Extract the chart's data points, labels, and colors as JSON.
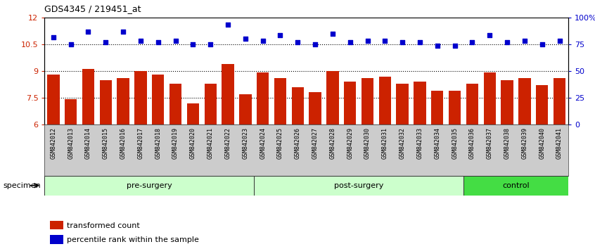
{
  "title": "GDS4345 / 219451_at",
  "categories": [
    "GSM842012",
    "GSM842013",
    "GSM842014",
    "GSM842015",
    "GSM842016",
    "GSM842017",
    "GSM842018",
    "GSM842019",
    "GSM842020",
    "GSM842021",
    "GSM842022",
    "GSM842023",
    "GSM842024",
    "GSM842025",
    "GSM842026",
    "GSM842027",
    "GSM842028",
    "GSM842029",
    "GSM842030",
    "GSM842031",
    "GSM842032",
    "GSM842033",
    "GSM842034",
    "GSM842035",
    "GSM842036",
    "GSM842037",
    "GSM842038",
    "GSM842039",
    "GSM842040",
    "GSM842041"
  ],
  "bar_values": [
    8.8,
    7.4,
    9.1,
    8.5,
    8.6,
    9.0,
    8.8,
    8.3,
    7.2,
    8.3,
    9.4,
    7.7,
    8.9,
    8.6,
    8.1,
    7.8,
    9.0,
    8.4,
    8.6,
    8.7,
    8.3,
    8.4,
    7.9,
    7.9,
    8.3,
    8.9,
    8.5,
    8.6,
    8.2,
    8.6
  ],
  "scatter_values_left": [
    10.9,
    10.5,
    11.2,
    10.6,
    11.2,
    10.7,
    10.6,
    10.7,
    10.5,
    10.5,
    11.6,
    10.8,
    10.7,
    11.0,
    10.6,
    10.5,
    11.1,
    10.6,
    10.7,
    10.7,
    10.6,
    10.6,
    10.4,
    10.4,
    10.6,
    11.0,
    10.6,
    10.7,
    10.5,
    10.7
  ],
  "bar_color": "#cc2200",
  "scatter_color": "#0000cc",
  "ylim_left": [
    6,
    12
  ],
  "ylim_right": [
    0,
    100
  ],
  "yticks_left": [
    6,
    7.5,
    9,
    10.5,
    12
  ],
  "ytick_labels_left": [
    "6",
    "7.5",
    "9",
    "10.5",
    "12"
  ],
  "yticks_right": [
    0,
    25,
    50,
    75,
    100
  ],
  "ytick_labels_right": [
    "0",
    "25",
    "50",
    "75",
    "100%"
  ],
  "hlines": [
    7.5,
    9.0,
    10.5
  ],
  "groups": [
    {
      "label": "pre-surgery",
      "start": 0,
      "end": 12
    },
    {
      "label": "post-surgery",
      "start": 12,
      "end": 24
    },
    {
      "label": "control",
      "start": 24,
      "end": 30
    }
  ],
  "group_colors": [
    "#ccffcc",
    "#ccffcc",
    "#44dd44"
  ],
  "group_edge_color": "#333333",
  "specimen_label": "specimen",
  "legend_items": [
    {
      "label": "transformed count",
      "color": "#cc2200"
    },
    {
      "label": "percentile rank within the sample",
      "color": "#0000cc"
    }
  ],
  "xtick_bg_color": "#cccccc",
  "plot_bg_color": "#ffffff"
}
